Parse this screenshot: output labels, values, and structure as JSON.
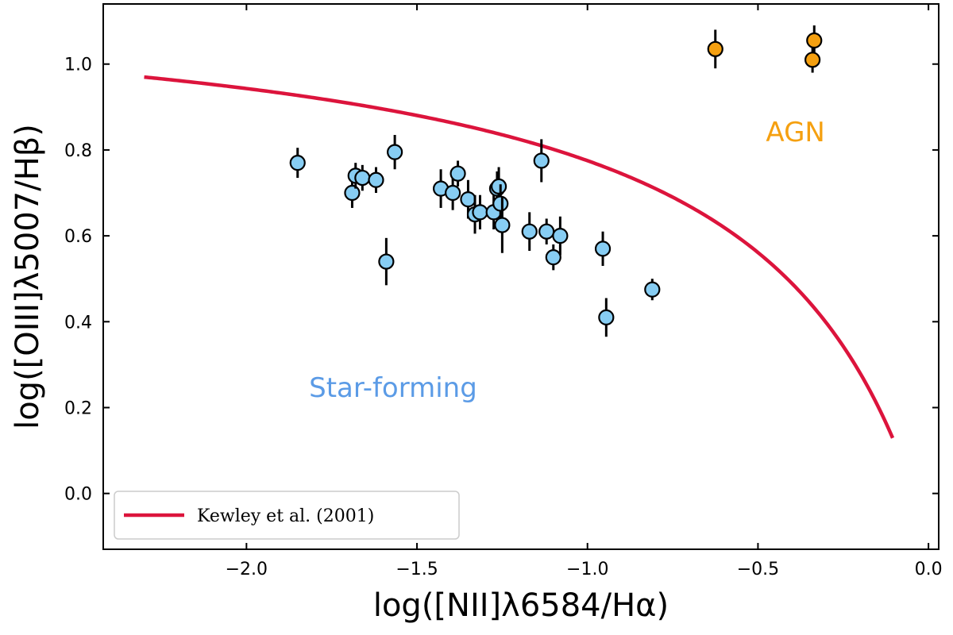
{
  "chart_data": {
    "type": "scatter",
    "xlabel": "log([NII]λ6584/Hα)",
    "ylabel": "log([OIII]λ5007/Hβ)",
    "xlim": [
      -2.42,
      0.03
    ],
    "ylim": [
      -0.13,
      1.14
    ],
    "xticks": [
      -2.0,
      -1.5,
      -1.0,
      -0.5,
      0.0
    ],
    "xtick_labels": [
      "−2.0",
      "−1.5",
      "−1.0",
      "−0.5",
      "0.0"
    ],
    "yticks": [
      0.0,
      0.2,
      0.4,
      0.6,
      0.8,
      1.0
    ],
    "ytick_labels": [
      "0.0",
      "0.2",
      "0.4",
      "0.6",
      "0.8",
      "1.0"
    ],
    "region_labels": [
      {
        "text": "Star-forming",
        "color": "#5b9be6",
        "x": -1.57,
        "y": 0.225
      },
      {
        "text": "AGN",
        "color": "#f5a010",
        "x": -0.39,
        "y": 0.82
      }
    ],
    "legend": {
      "label": "Kewley et al. (2001)",
      "position": "lower-left"
    },
    "curve": {
      "name": "Kewley et al. (2001)",
      "color": "#dc143c",
      "formula": "0.61/(x-0.47)+1.19",
      "x_range": [
        -2.3,
        -0.105
      ]
    },
    "series": [
      {
        "name": "Star-forming",
        "color": "#87cdf3",
        "points": [
          {
            "x": -1.85,
            "y": 0.77,
            "yerr": 0.035
          },
          {
            "x": -1.69,
            "y": 0.7,
            "yerr": 0.035
          },
          {
            "x": -1.68,
            "y": 0.74,
            "yerr": 0.03
          },
          {
            "x": -1.66,
            "y": 0.735,
            "yerr": 0.03
          },
          {
            "x": -1.62,
            "y": 0.73,
            "yerr": 0.03
          },
          {
            "x": -1.59,
            "y": 0.54,
            "yerr": 0.055
          },
          {
            "x": -1.565,
            "y": 0.795,
            "yerr": 0.04
          },
          {
            "x": -1.43,
            "y": 0.71,
            "yerr": 0.045
          },
          {
            "x": -1.395,
            "y": 0.7,
            "yerr": 0.04
          },
          {
            "x": -1.38,
            "y": 0.745,
            "yerr": 0.03
          },
          {
            "x": -1.35,
            "y": 0.685,
            "yerr": 0.045
          },
          {
            "x": -1.33,
            "y": 0.65,
            "yerr": 0.045
          },
          {
            "x": -1.315,
            "y": 0.655,
            "yerr": 0.04
          },
          {
            "x": -1.275,
            "y": 0.655,
            "yerr": 0.04
          },
          {
            "x": -1.265,
            "y": 0.71,
            "yerr": 0.04
          },
          {
            "x": -1.26,
            "y": 0.715,
            "yerr": 0.045
          },
          {
            "x": -1.255,
            "y": 0.675,
            "yerr": 0.045
          },
          {
            "x": -1.25,
            "y": 0.625,
            "yerr": 0.065
          },
          {
            "x": -1.17,
            "y": 0.61,
            "yerr": 0.045
          },
          {
            "x": -1.135,
            "y": 0.775,
            "yerr": 0.05
          },
          {
            "x": -1.12,
            "y": 0.61,
            "yerr": 0.03
          },
          {
            "x": -1.1,
            "y": 0.55,
            "yerr": 0.03
          },
          {
            "x": -1.08,
            "y": 0.6,
            "yerr": 0.045
          },
          {
            "x": -0.955,
            "y": 0.57,
            "yerr": 0.04
          },
          {
            "x": -0.945,
            "y": 0.41,
            "yerr": 0.045
          },
          {
            "x": -0.81,
            "y": 0.475,
            "yerr": 0.025
          }
        ]
      },
      {
        "name": "AGN",
        "color": "#f5a010",
        "points": [
          {
            "x": -0.625,
            "y": 1.035,
            "yerr": 0.045
          },
          {
            "x": -0.335,
            "y": 1.055,
            "yerr": 0.035
          },
          {
            "x": -0.34,
            "y": 1.01,
            "yerr": 0.03
          }
        ]
      }
    ]
  }
}
